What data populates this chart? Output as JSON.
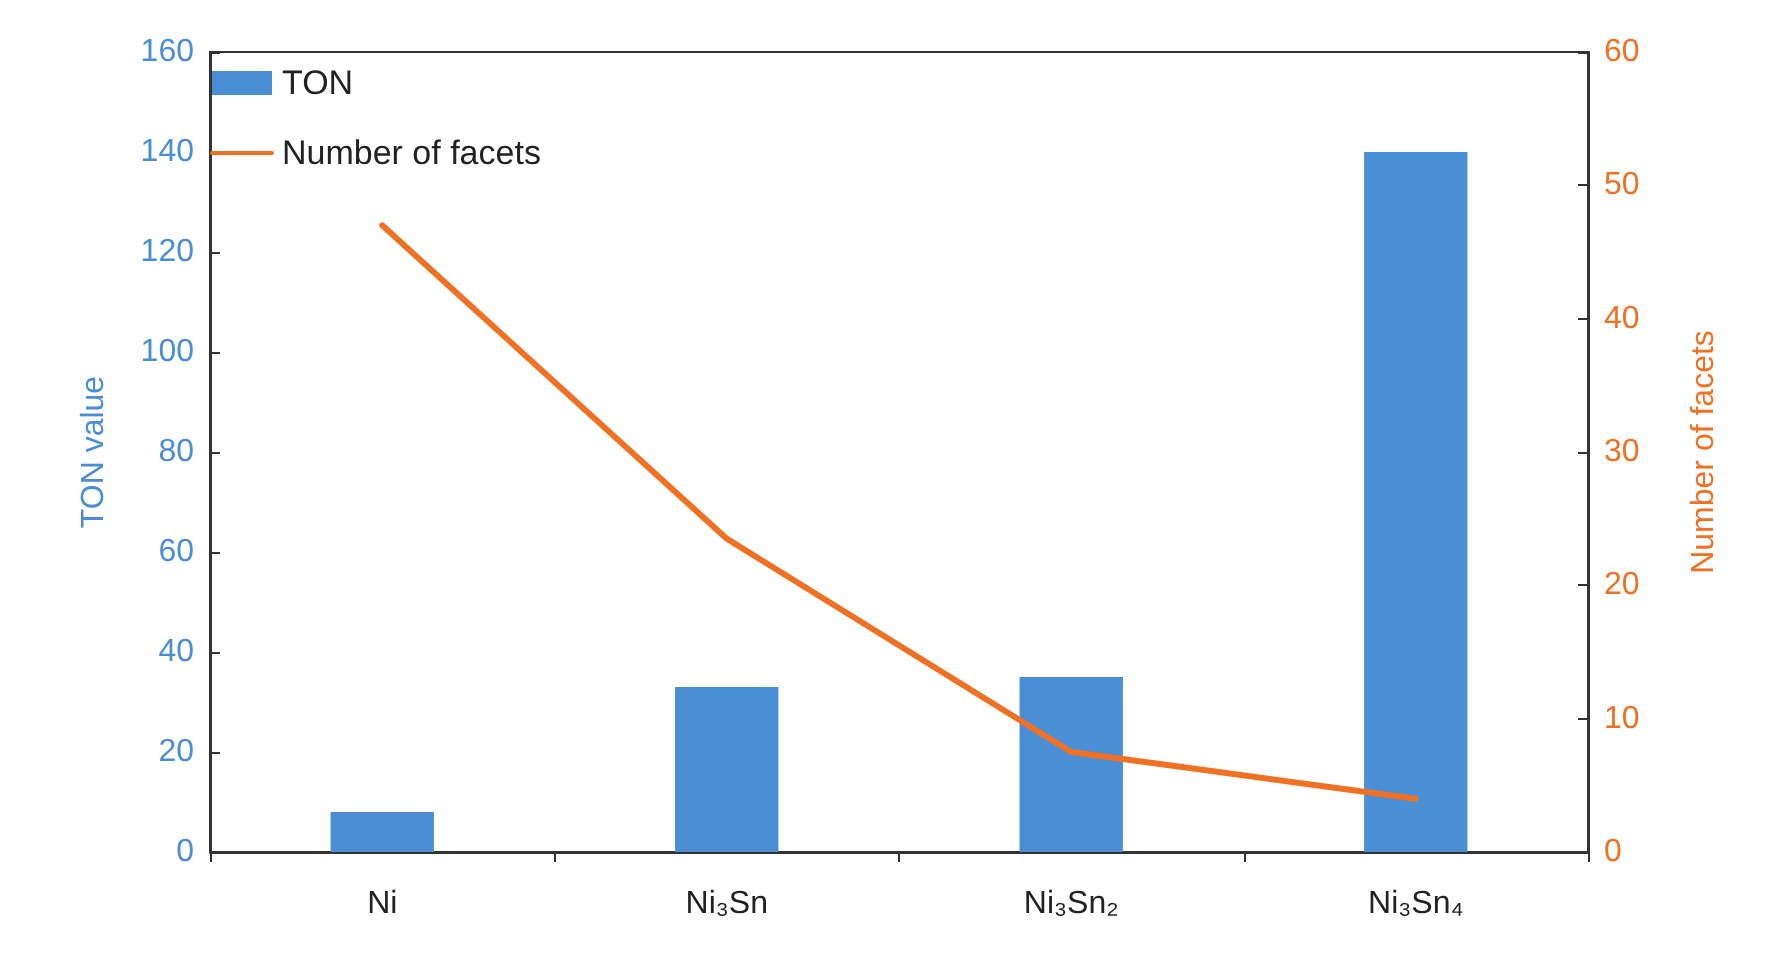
{
  "chart_data": {
    "type": "bar",
    "categories": [
      "Ni",
      "Ni₃Sn",
      "Ni₃Sn₂",
      "Ni₃Sn₄"
    ],
    "series": [
      {
        "name": "TON",
        "color": "#4a8fd6",
        "values": [
          8,
          33,
          35,
          140
        ]
      },
      {
        "name": "Number of facets",
        "type": "line",
        "axis": "y2",
        "color": "#f07024",
        "values": [
          47,
          23.5,
          7.5,
          4
        ]
      }
    ],
    "ylabel": "TON value",
    "y2label": "Number of facets",
    "ylim": [
      0,
      160
    ],
    "yticks": [
      0,
      20,
      40,
      60,
      80,
      100,
      120,
      140,
      160
    ],
    "y2lim": [
      0,
      60
    ],
    "y2ticks": [
      0,
      10,
      20,
      30,
      40,
      50,
      60
    ],
    "legend": "top left",
    "grid": false,
    "marker": "none"
  }
}
